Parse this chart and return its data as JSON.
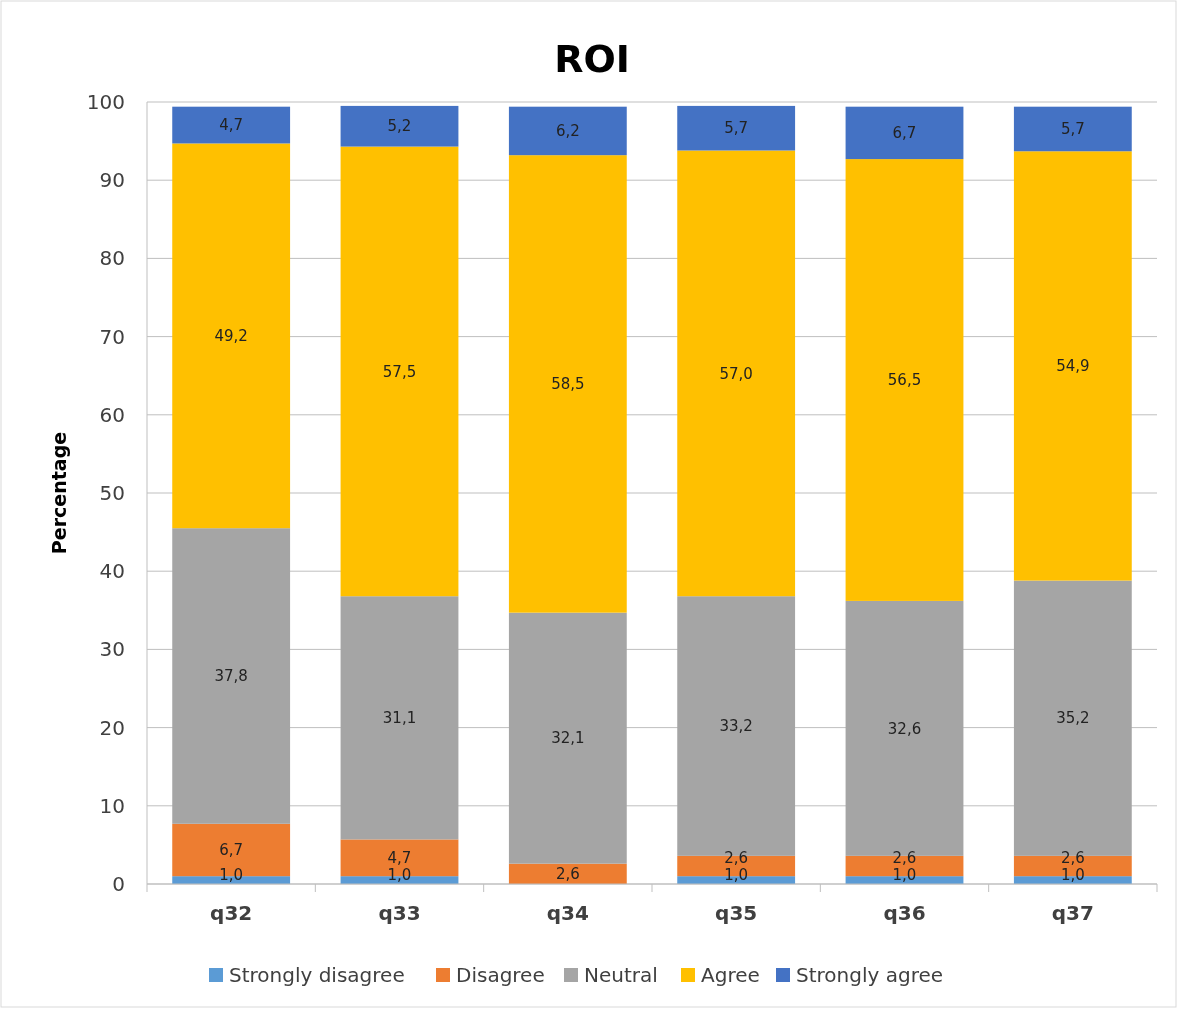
{
  "chart_data": {
    "type": "bar",
    "title": "ROI",
    "ylabel": "Percentage",
    "categories": [
      "q32",
      "q33",
      "q34",
      "q35",
      "q36",
      "q37"
    ],
    "stacked": true,
    "ylim": [
      0,
      100
    ],
    "yticks": [
      0,
      10,
      20,
      30,
      40,
      50,
      60,
      70,
      80,
      90,
      100
    ],
    "grid": "y",
    "legend": "bottom",
    "series": [
      {
        "name": "Strongly disagree",
        "color": "#5b9bd5",
        "values": [
          1.0,
          1.0,
          null,
          1.0,
          1.0,
          1.0
        ],
        "value_labels": [
          "1,0",
          "1,0",
          null,
          "1,0",
          "1,0",
          "1,0"
        ]
      },
      {
        "name": "Disagree",
        "color": "#ed7d31",
        "values": [
          6.7,
          4.7,
          2.6,
          2.6,
          2.6,
          2.6
        ],
        "value_labels": [
          "6,7",
          "4,7",
          "2,6",
          "2,6",
          "2,6",
          "2,6"
        ]
      },
      {
        "name": "Neutral",
        "color": "#a5a5a5",
        "values": [
          37.8,
          31.1,
          32.1,
          33.2,
          32.6,
          35.2
        ],
        "value_labels": [
          "37,8",
          "31,1",
          "32,1",
          "33,2",
          "32,6",
          "35,2"
        ]
      },
      {
        "name": "Agree",
        "color": "#ffc000",
        "values": [
          49.2,
          57.5,
          58.5,
          57.0,
          56.5,
          54.9
        ],
        "value_labels": [
          "49,2",
          "57,5",
          "58,5",
          "57,0",
          "56,5",
          "54,9"
        ]
      },
      {
        "name": "Strongly agree",
        "color": "#4472c4",
        "values": [
          4.7,
          5.2,
          6.2,
          5.7,
          6.7,
          5.7
        ],
        "value_labels": [
          "4,7",
          "5,2",
          "6,2",
          "5,7",
          "6,7",
          "5,7"
        ]
      }
    ]
  }
}
